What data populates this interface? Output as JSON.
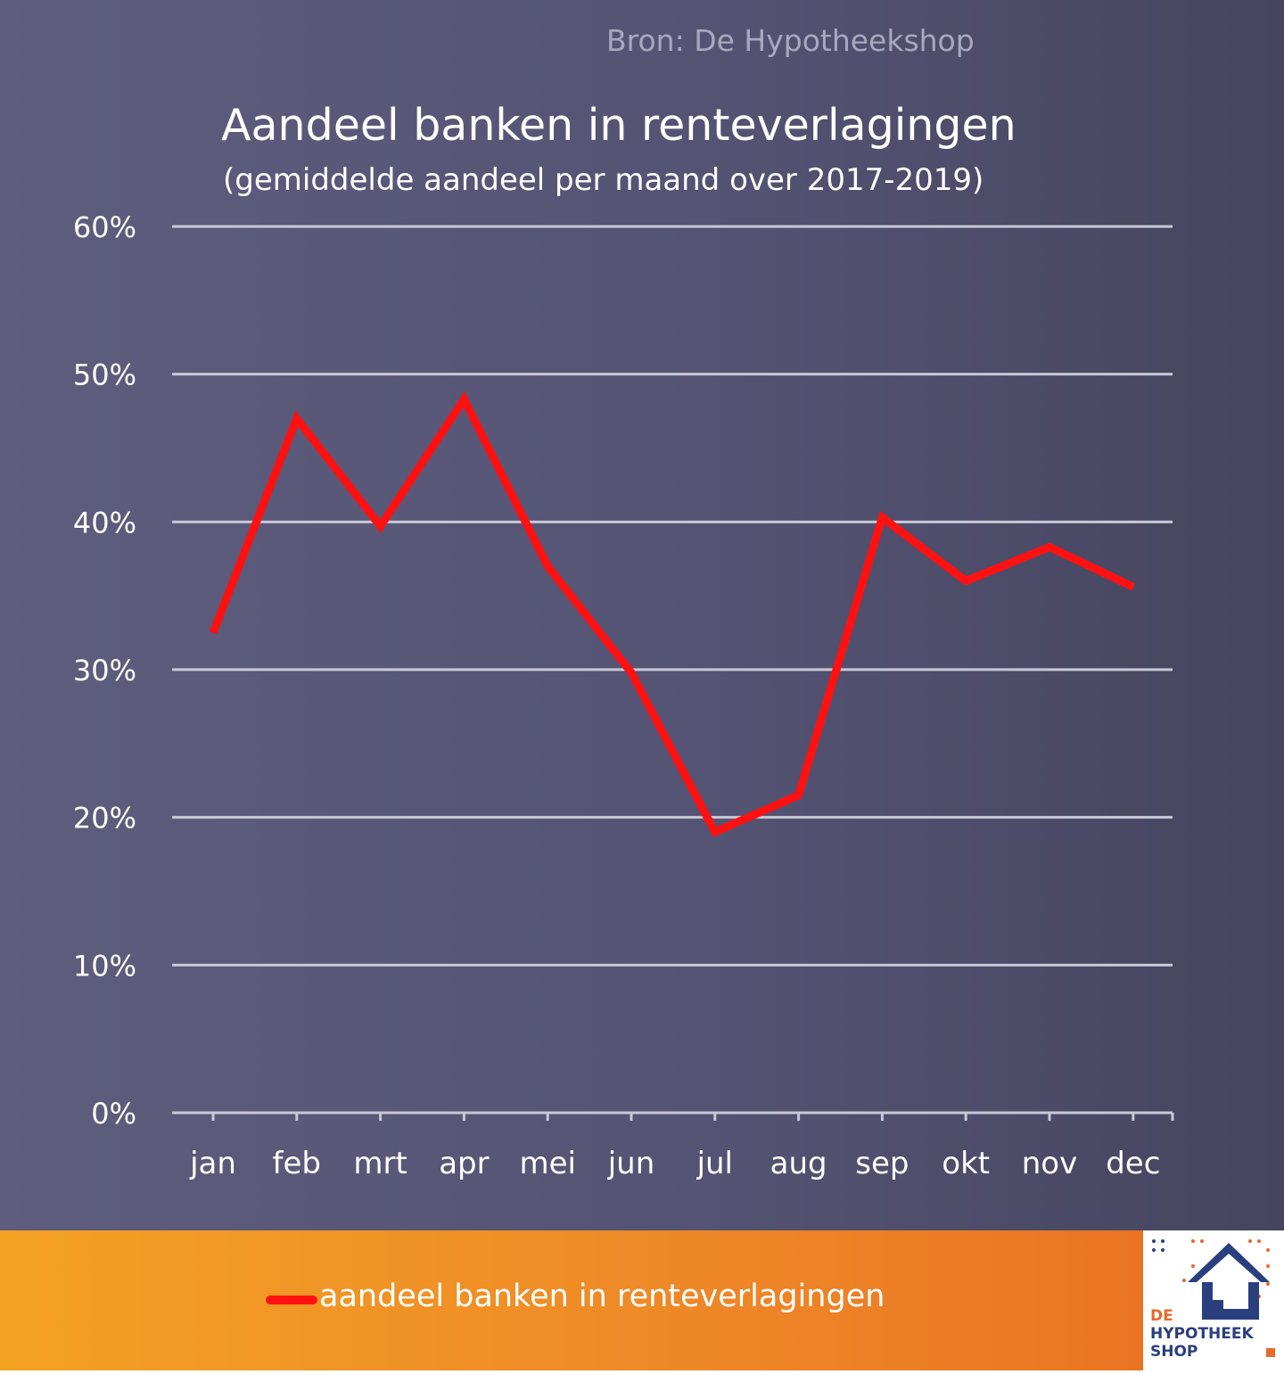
{
  "source": "Bron: De Hypotheekshop",
  "chart_data": {
    "type": "line",
    "title": "Aandeel banken in renteverlagingen",
    "subtitle": "(gemiddelde aandeel per maand over 2017-2019)",
    "categories": [
      "jan",
      "feb",
      "mrt",
      "apr",
      "mei",
      "jun",
      "jul",
      "aug",
      "sep",
      "okt",
      "nov",
      "dec"
    ],
    "series": [
      {
        "name": "aandeel banken in renteverlagingen",
        "color": "#ff1111",
        "values": [
          32.5,
          47.0,
          39.7,
          48.3,
          37.0,
          29.8,
          19.0,
          21.5,
          40.3,
          36.0,
          38.3,
          35.6
        ]
      }
    ],
    "ylim": [
      0,
      60
    ],
    "yticks": [
      "0%",
      "10%",
      "20%",
      "30%",
      "40%",
      "50%",
      "60%"
    ],
    "ytick_values": [
      0,
      10,
      20,
      30,
      40,
      50,
      60
    ],
    "grid": true,
    "legend": "bottom"
  },
  "legend": {
    "label": "aandeel banken in renteverlagingen"
  },
  "logo": {
    "line1": "DE",
    "line2": "HYPOTHEEK",
    "line3": "SHOP"
  },
  "colors": {
    "line": "#ff1111",
    "grid": "#c9c8d6",
    "accent": "#f08a26",
    "logo_blue": "#2a3f7e"
  },
  "icons": {
    "logo": "house-logo-icon"
  }
}
